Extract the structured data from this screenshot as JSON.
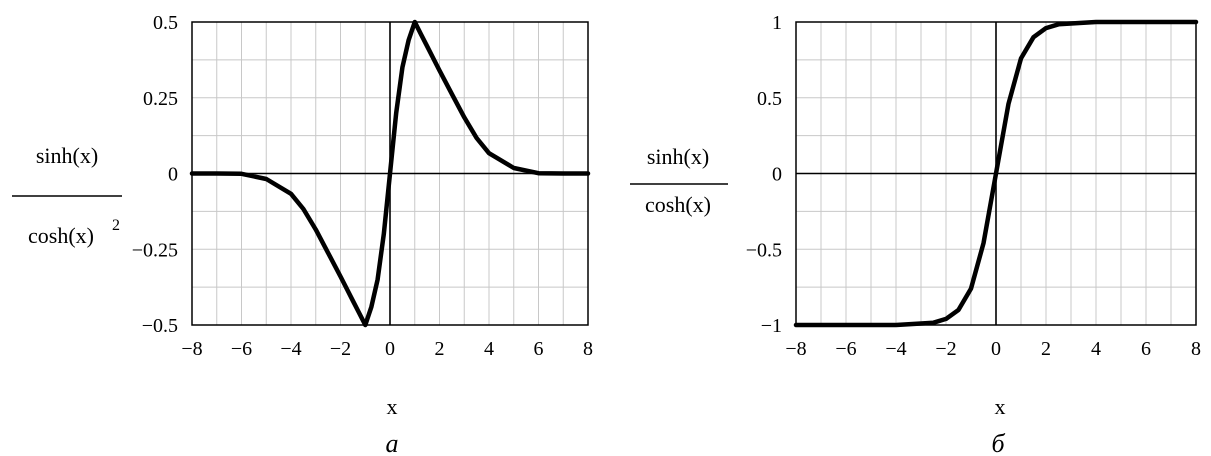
{
  "chart_data": [
    {
      "type": "line",
      "panel_label": "а",
      "xlabel": "x",
      "ylabel": {
        "numerator": "sinh(x)",
        "denominator": "cosh(x)",
        "exponent": "2"
      },
      "xlim": [
        -8,
        8
      ],
      "ylim": [
        -0.5,
        0.5
      ],
      "xticks": [
        -8,
        -6,
        -4,
        -2,
        0,
        2,
        4,
        6,
        8
      ],
      "xtick_labels": [
        "−8",
        "−6",
        "−4",
        "−2",
        "0",
        "2",
        "4",
        "6",
        "8"
      ],
      "yticks": [
        0.5,
        0.25,
        0,
        -0.25,
        -0.5
      ],
      "ytick_labels": [
        "0.5",
        "0.25",
        "0",
        "−0.25",
        "−0.5"
      ],
      "grid": true,
      "series": [
        {
          "x": [
            -8,
            -7,
            -6,
            -5,
            -4,
            -3.5,
            -3,
            -2.5,
            -2,
            -1.75,
            -1.5,
            -1.25,
            -1,
            -0.75,
            -0.5,
            -0.25,
            0,
            0.25,
            0.5,
            0.75,
            1,
            1.25,
            1.5,
            1.75,
            2,
            2.5,
            3,
            3.5,
            4,
            5,
            6,
            7,
            8
          ],
          "y": [
            0,
            0,
            -0.001,
            -0.018,
            -0.067,
            -0.117,
            -0.185,
            -0.262,
            -0.34,
            -0.38,
            -0.42,
            -0.46,
            -0.5,
            -0.44,
            -0.35,
            -0.2,
            0,
            0.2,
            0.35,
            0.44,
            0.5,
            0.46,
            0.42,
            0.38,
            0.34,
            0.262,
            0.185,
            0.117,
            0.067,
            0.018,
            0.001,
            0,
            0
          ]
        }
      ]
    },
    {
      "type": "line",
      "panel_label": "б",
      "xlabel": "x",
      "ylabel": {
        "numerator": "sinh(x)",
        "denominator": "cosh(x)",
        "exponent": ""
      },
      "xlim": [
        -8,
        8
      ],
      "ylim": [
        -1,
        1
      ],
      "xticks": [
        -8,
        -6,
        -4,
        -2,
        0,
        2,
        4,
        6,
        8
      ],
      "xtick_labels": [
        "−8",
        "−6",
        "−4",
        "−2",
        "0",
        "2",
        "4",
        "6",
        "8"
      ],
      "yticks": [
        1,
        0.5,
        0,
        -0.5,
        -1
      ],
      "ytick_labels": [
        "1",
        "0.5",
        "0",
        "−0.5",
        "−1"
      ],
      "grid": true,
      "series": [
        {
          "x": [
            -8,
            -6,
            -4,
            -3,
            -2.5,
            -2,
            -1.5,
            -1,
            -0.5,
            0,
            0.5,
            1,
            1.5,
            2,
            2.5,
            3,
            4,
            6,
            8
          ],
          "y": [
            -1,
            -1,
            -1,
            -0.99,
            -0.985,
            -0.96,
            -0.9,
            -0.76,
            -0.46,
            0,
            0.46,
            0.76,
            0.9,
            0.96,
            0.985,
            0.99,
            1,
            1,
            1
          ]
        }
      ]
    }
  ]
}
